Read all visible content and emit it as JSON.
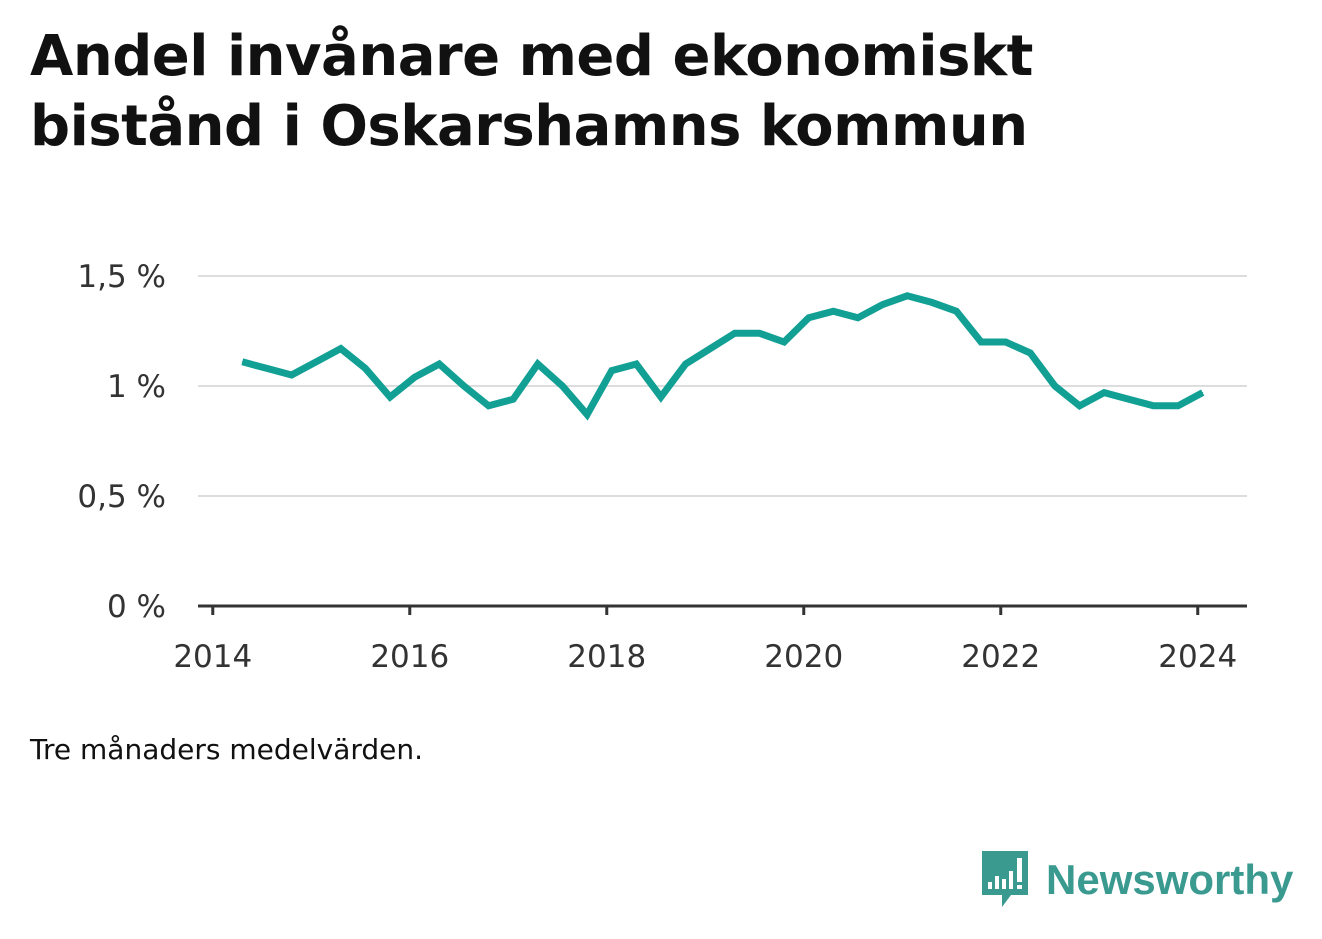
{
  "title": "Andel invånare med ekonomiskt bistånd i Oskarshamns kommun",
  "note": "Tre månaders medelvärden.",
  "brand": {
    "name": "Newsworthy"
  },
  "colors": {
    "line": "#12a094",
    "grid": "#dddddd",
    "axis": "#333333",
    "brand": "#3a9a90"
  },
  "chart_data": {
    "type": "line",
    "title": "Andel invånare med ekonomiskt bistånd i Oskarshamns kommun",
    "xlabel": "",
    "ylabel": "",
    "xlim": [
      2013.85,
      2024.5
    ],
    "ylim": [
      0,
      1.5
    ],
    "x_ticks": [
      2014,
      2016,
      2018,
      2020,
      2022,
      2024
    ],
    "x_tick_labels": [
      "2014",
      "2016",
      "2018",
      "2020",
      "2022",
      "2024"
    ],
    "y_ticks": [
      0,
      0.5,
      1,
      1.5
    ],
    "y_tick_labels": [
      "0 %",
      "0,5 %",
      "1 %",
      "1,5 %"
    ],
    "grid": true,
    "legend": "none",
    "series": [
      {
        "x": [
          2014.3,
          2014.55,
          2014.8,
          2015.05,
          2015.3,
          2015.55,
          2015.8,
          2016.05,
          2016.3,
          2016.55,
          2016.8,
          2017.05,
          2017.3,
          2017.55,
          2017.8,
          2018.05,
          2018.3,
          2018.55,
          2018.8,
          2019.05,
          2019.3,
          2019.55,
          2019.8,
          2020.05,
          2020.3,
          2020.55,
          2020.8,
          2021.05,
          2021.3,
          2021.55,
          2021.8,
          2022.05,
          2022.3,
          2022.55,
          2022.8,
          2023.05,
          2023.3,
          2023.55,
          2023.8,
          2024.05
        ],
        "y": [
          1.11,
          1.08,
          1.05,
          1.11,
          1.17,
          1.08,
          0.95,
          1.04,
          1.1,
          1.0,
          0.91,
          0.94,
          1.1,
          1.0,
          0.87,
          1.07,
          1.1,
          0.95,
          1.1,
          1.17,
          1.24,
          1.24,
          1.2,
          1.31,
          1.34,
          1.31,
          1.37,
          1.41,
          1.38,
          1.34,
          1.2,
          1.2,
          1.15,
          1.0,
          0.91,
          0.97,
          0.94,
          0.91,
          0.91,
          0.97
        ]
      }
    ]
  }
}
